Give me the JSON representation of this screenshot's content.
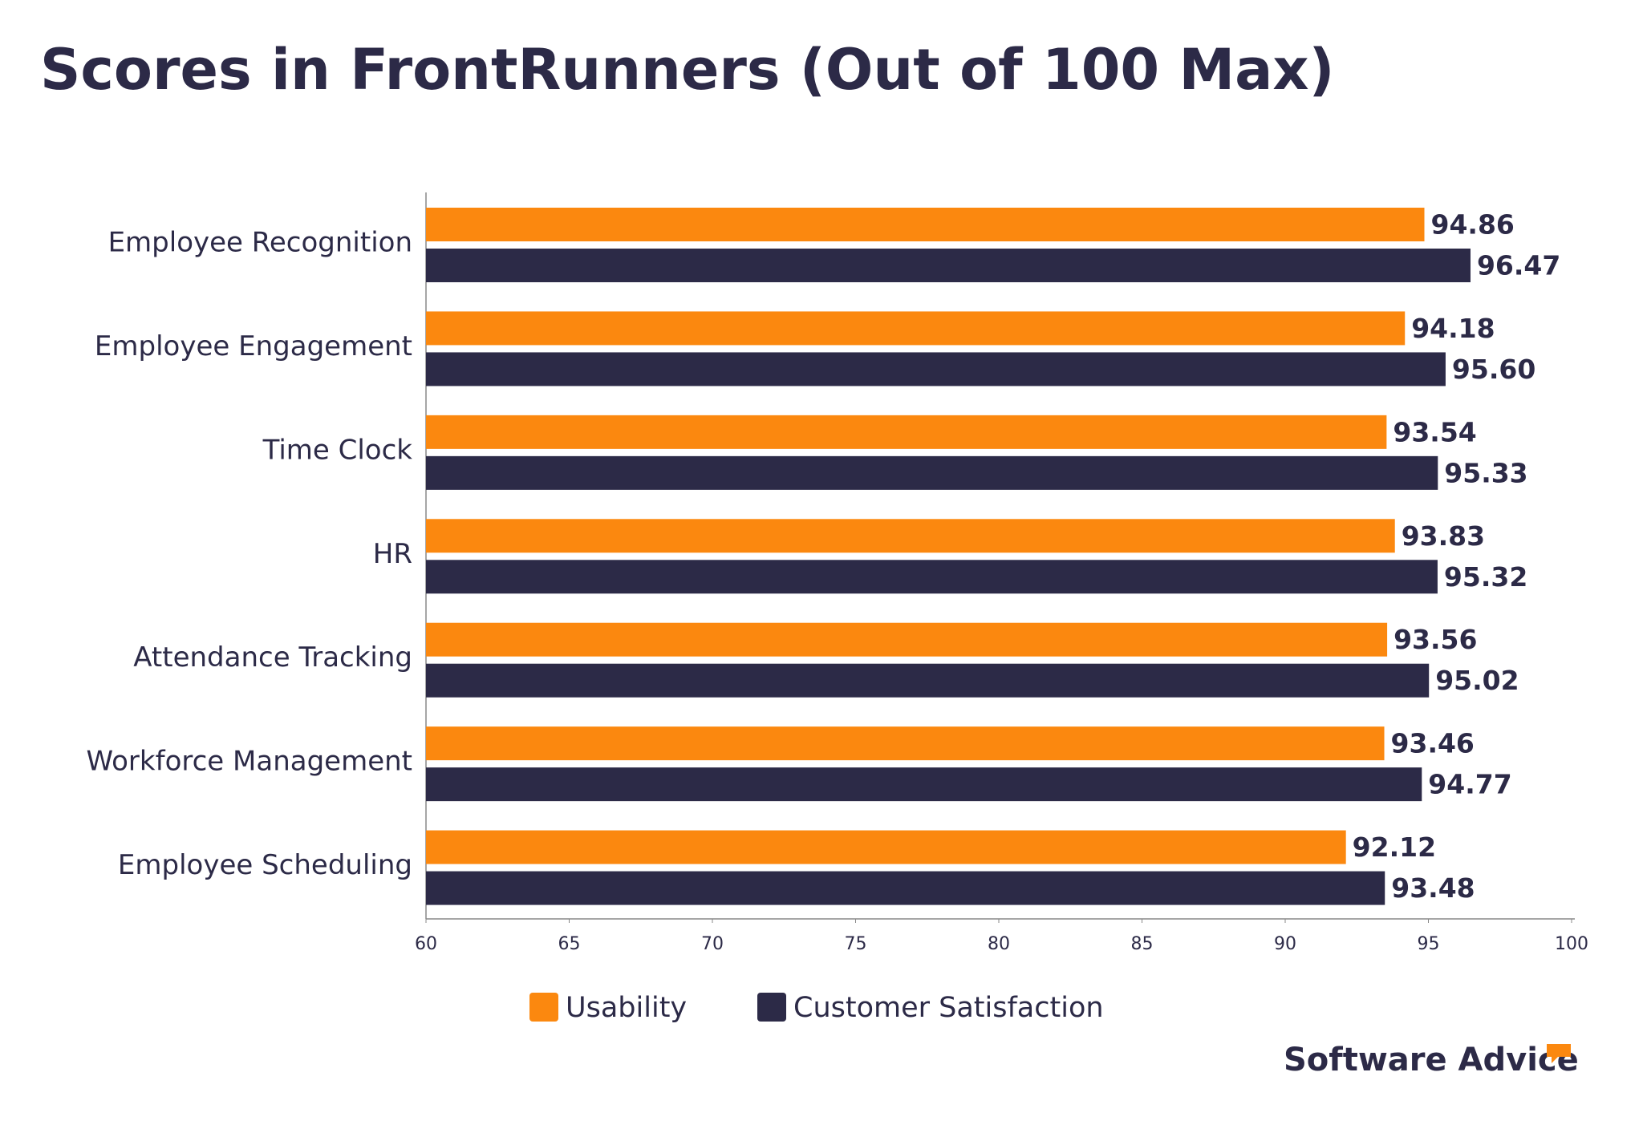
{
  "chart_data": {
    "type": "hbar",
    "title": "Scores in FrontRunners (Out of 100 Max)",
    "categories": [
      "Employee Recognition",
      "Employee Engagement",
      "Time Clock",
      "HR",
      "Attendance Tracking",
      "Workforce Management",
      "Employee Scheduling"
    ],
    "series": [
      {
        "name": "Usability",
        "color": "#fb880f",
        "values": [
          94.86,
          94.18,
          93.54,
          93.83,
          93.56,
          93.46,
          92.12
        ],
        "value_labels": [
          "94.86",
          "94.18",
          "93.54",
          "93.83",
          "93.56",
          "93.46",
          "92.12"
        ]
      },
      {
        "name": "Customer Satisfaction",
        "color": "#2c2a47",
        "values": [
          96.47,
          95.6,
          95.33,
          95.32,
          95.02,
          94.77,
          93.48
        ],
        "value_labels": [
          "96.47",
          "95.60",
          "95.33",
          "95.32",
          "95.02",
          "94.77",
          "93.48"
        ]
      }
    ],
    "xlim": [
      60,
      100
    ],
    "xticks": [
      60,
      65,
      70,
      75,
      80,
      85,
      90,
      95,
      100
    ],
    "legend": "bottom",
    "logo_text": "Software Advice"
  }
}
